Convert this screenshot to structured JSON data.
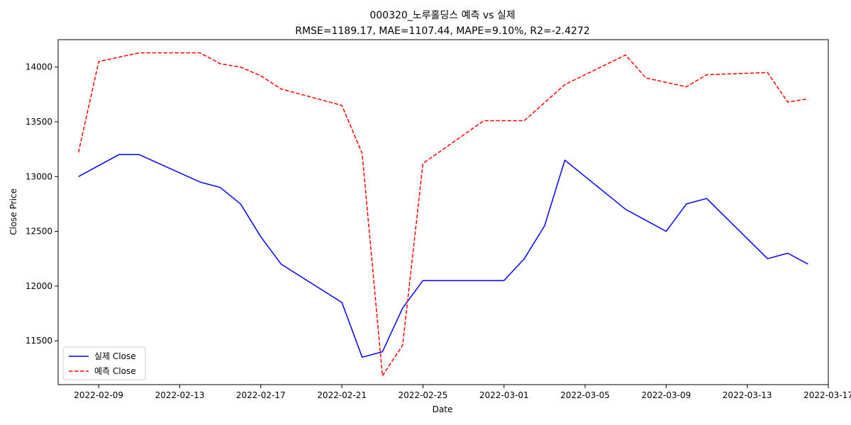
{
  "chart_data": {
    "type": "line",
    "title": "000320_노루홀딩스 예측 vs 실제",
    "subtitle": "RMSE=1189.17, MAE=1107.44, MAPE=9.10%, R2=-2.4272",
    "xlabel": "Date",
    "ylabel": "Close Price",
    "x_range": [
      "2022-02-07",
      "2022-03-17"
    ],
    "ylim": [
      11100,
      14250
    ],
    "x_ticks": [
      "2022-02-09",
      "2022-02-13",
      "2022-02-17",
      "2022-02-21",
      "2022-02-25",
      "2022-03-01",
      "2022-03-05",
      "2022-03-09",
      "2022-03-13",
      "2022-03-17"
    ],
    "y_ticks": [
      11500,
      12000,
      12500,
      13000,
      13500,
      14000
    ],
    "grid": false,
    "legend_position": "lower-left",
    "series": [
      {
        "name": "실제 Close",
        "color": "#0000ff",
        "style": "solid",
        "points": [
          [
            "2022-02-08",
            13000
          ],
          [
            "2022-02-10",
            13200
          ],
          [
            "2022-02-11",
            13200
          ],
          [
            "2022-02-14",
            12950
          ],
          [
            "2022-02-15",
            12900
          ],
          [
            "2022-02-16",
            12750
          ],
          [
            "2022-02-17",
            12450
          ],
          [
            "2022-02-18",
            12200
          ],
          [
            "2022-02-21",
            11850
          ],
          [
            "2022-02-22",
            11350
          ],
          [
            "2022-02-23",
            11400
          ],
          [
            "2022-02-24",
            11800
          ],
          [
            "2022-02-25",
            12050
          ],
          [
            "2022-02-28",
            12050
          ],
          [
            "2022-03-01",
            12050
          ],
          [
            "2022-03-02",
            12250
          ],
          [
            "2022-03-03",
            12550
          ],
          [
            "2022-03-04",
            13150
          ],
          [
            "2022-03-07",
            12700
          ],
          [
            "2022-03-09",
            12500
          ],
          [
            "2022-03-10",
            12750
          ],
          [
            "2022-03-11",
            12800
          ],
          [
            "2022-03-14",
            12250
          ],
          [
            "2022-03-15",
            12300
          ],
          [
            "2022-03-16",
            12200
          ]
        ]
      },
      {
        "name": "예측 Close",
        "color": "#ff0000",
        "style": "dashed",
        "points": [
          [
            "2022-02-08",
            13220
          ],
          [
            "2022-02-09",
            14050
          ],
          [
            "2022-02-11",
            14130
          ],
          [
            "2022-02-14",
            14130
          ],
          [
            "2022-02-15",
            14030
          ],
          [
            "2022-02-16",
            14000
          ],
          [
            "2022-02-17",
            13920
          ],
          [
            "2022-02-18",
            13800
          ],
          [
            "2022-02-21",
            13650
          ],
          [
            "2022-02-22",
            13210
          ],
          [
            "2022-02-23",
            11180
          ],
          [
            "2022-02-24",
            11460
          ],
          [
            "2022-02-25",
            13120
          ],
          [
            "2022-02-28",
            13510
          ],
          [
            "2022-03-02",
            13510
          ],
          [
            "2022-03-04",
            13840
          ],
          [
            "2022-03-07",
            14110
          ],
          [
            "2022-03-08",
            13900
          ],
          [
            "2022-03-10",
            13820
          ],
          [
            "2022-03-11",
            13930
          ],
          [
            "2022-03-14",
            13950
          ],
          [
            "2022-03-15",
            13680
          ],
          [
            "2022-03-16",
            13710
          ]
        ]
      }
    ]
  }
}
